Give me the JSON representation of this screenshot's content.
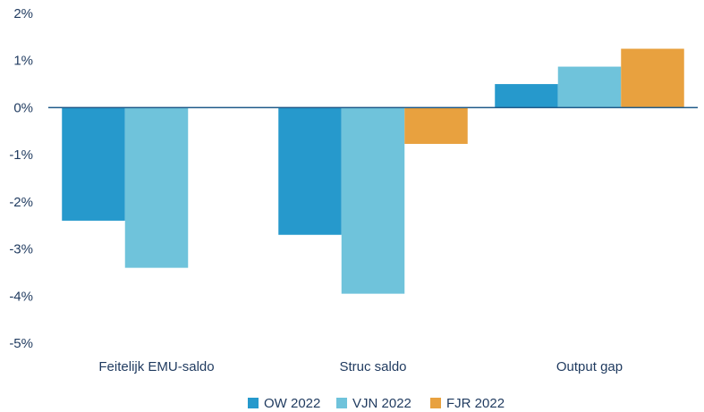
{
  "chart_data": {
    "type": "bar",
    "categories": [
      "Feitelijk EMU-saldo",
      "Struc saldo",
      "Output gap"
    ],
    "series": [
      {
        "name": "OW 2022",
        "color": "#2699cc",
        "values": [
          -2.4,
          -2.7,
          0.5
        ]
      },
      {
        "name": "VJN 2022",
        "color": "#6fc3db",
        "values": [
          -3.4,
          -3.95,
          0.87
        ]
      },
      {
        "name": "FJR 2022",
        "color": "#e8a13f",
        "values": [
          null,
          -0.77,
          1.25
        ]
      }
    ],
    "yticks": [
      "2%",
      "1%",
      "0%",
      "-1%",
      "-2%",
      "-3%",
      "-4%",
      "-5%"
    ],
    "ylim": [
      -5,
      2
    ],
    "grid": false,
    "legend": "bottom",
    "axis_color": "#1f5a8a"
  }
}
